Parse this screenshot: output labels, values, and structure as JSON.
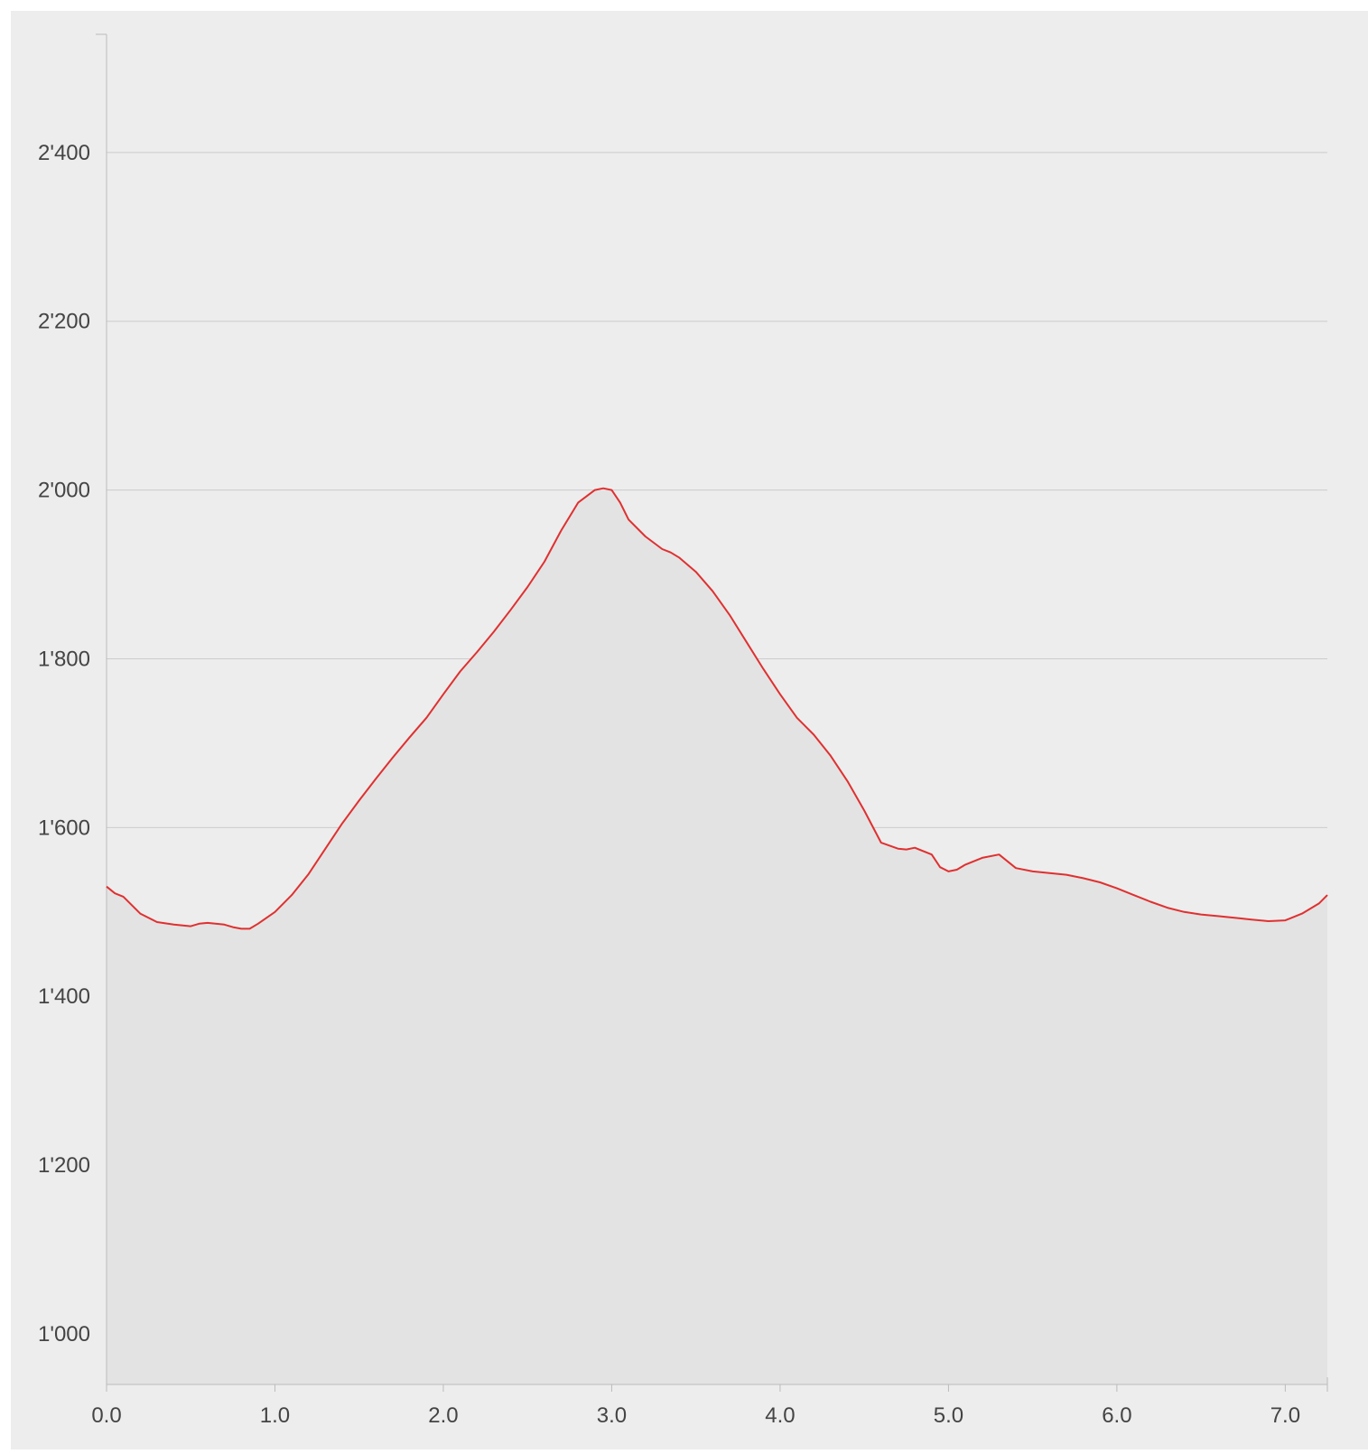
{
  "chart_data": {
    "type": "area",
    "title": "",
    "xlabel": "",
    "ylabel": "",
    "xlim": [
      0,
      7.25
    ],
    "ylim": [
      940,
      2540
    ],
    "x_ticks": [
      {
        "value": 0,
        "label": "0.0"
      },
      {
        "value": 1,
        "label": "1.0"
      },
      {
        "value": 2,
        "label": "2.0"
      },
      {
        "value": 3,
        "label": "3.0"
      },
      {
        "value": 4,
        "label": "4.0"
      },
      {
        "value": 5,
        "label": "5.0"
      },
      {
        "value": 6,
        "label": "6.0"
      },
      {
        "value": 7,
        "label": "7.0"
      }
    ],
    "y_ticks": [
      {
        "value": 1000,
        "label": "1'000"
      },
      {
        "value": 1200,
        "label": "1'200"
      },
      {
        "value": 1400,
        "label": "1'400"
      },
      {
        "value": 1600,
        "label": "1'600"
      },
      {
        "value": 1800,
        "label": "1'800"
      },
      {
        "value": 2000,
        "label": "2'000"
      },
      {
        "value": 2200,
        "label": "2'200"
      },
      {
        "value": 2400,
        "label": "2'400"
      }
    ],
    "grid": true,
    "colors": {
      "line": "#e03030",
      "fill": "#e3e3e3",
      "background": "#ededed",
      "grid": "#cccccc",
      "axis": "#bbbbbb"
    },
    "series": [
      {
        "x": [
          0,
          0.05,
          0.1,
          0.15,
          0.2,
          0.3,
          0.4,
          0.5,
          0.55,
          0.6,
          0.7,
          0.75,
          0.8,
          0.85,
          0.9,
          1.0,
          1.1,
          1.2,
          1.3,
          1.4,
          1.5,
          1.6,
          1.7,
          1.8,
          1.9,
          2.0,
          2.1,
          2.2,
          2.3,
          2.4,
          2.5,
          2.6,
          2.7,
          2.8,
          2.9,
          2.95,
          3.0,
          3.05,
          3.1,
          3.2,
          3.3,
          3.35,
          3.4,
          3.5,
          3.6,
          3.7,
          3.8,
          3.9,
          4.0,
          4.1,
          4.2,
          4.3,
          4.4,
          4.5,
          4.6,
          4.7,
          4.75,
          4.8,
          4.9,
          4.95,
          5.0,
          5.05,
          5.1,
          5.15,
          5.2,
          5.3,
          5.35,
          5.4,
          5.5,
          5.6,
          5.7,
          5.8,
          5.9,
          6.0,
          6.1,
          6.2,
          6.3,
          6.4,
          6.5,
          6.6,
          6.7,
          6.8,
          6.9,
          7.0,
          7.1,
          7.2,
          7.25
        ],
        "y": [
          1530,
          1522,
          1518,
          1508,
          1498,
          1488,
          1485,
          1483,
          1486,
          1487,
          1485,
          1482,
          1480,
          1480,
          1486,
          1500,
          1520,
          1545,
          1575,
          1605,
          1632,
          1658,
          1683,
          1707,
          1730,
          1758,
          1785,
          1808,
          1832,
          1858,
          1885,
          1915,
          1952,
          1985,
          2000,
          2002,
          2000,
          1985,
          1965,
          1945,
          1930,
          1926,
          1920,
          1903,
          1880,
          1852,
          1820,
          1788,
          1758,
          1730,
          1710,
          1685,
          1655,
          1620,
          1582,
          1575,
          1574,
          1576,
          1568,
          1553,
          1548,
          1550,
          1556,
          1560,
          1564,
          1568,
          1560,
          1552,
          1548,
          1546,
          1544,
          1540,
          1535,
          1528,
          1520,
          1512,
          1505,
          1500,
          1497,
          1495,
          1493,
          1491,
          1489,
          1490,
          1498,
          1510,
          1520
        ]
      }
    ]
  }
}
